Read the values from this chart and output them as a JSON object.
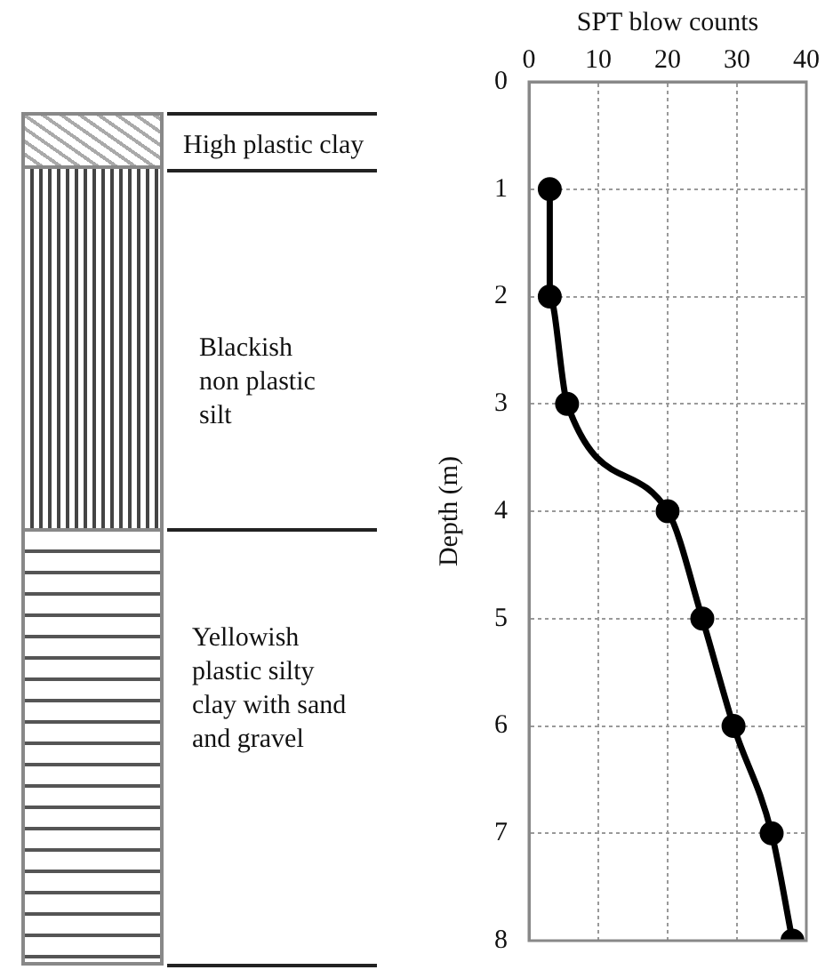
{
  "chart_data": {
    "type": "line",
    "xlabel": "SPT blow counts",
    "ylabel": "Depth (m)",
    "x": [
      3,
      3,
      5.5,
      20,
      25,
      29.5,
      35,
      38
    ],
    "series": [
      {
        "color": "#000000",
        "values": [
          1,
          2,
          3,
          4,
          5,
          6,
          7,
          8
        ]
      }
    ],
    "xlim": [
      0,
      40
    ],
    "xticks": [
      0,
      10,
      20,
      30,
      40
    ],
    "ylim": [
      8,
      0
    ],
    "yticks": [
      0,
      1,
      2,
      3,
      4,
      5,
      6,
      7,
      8
    ],
    "grid": true,
    "marker": "circle",
    "line_style": "solid",
    "legend": false,
    "annotations": [
      "High plastic clay",
      "Blackish non plastic silt",
      "Yellowish plastic silty clay with sand and gravel"
    ]
  }
}
